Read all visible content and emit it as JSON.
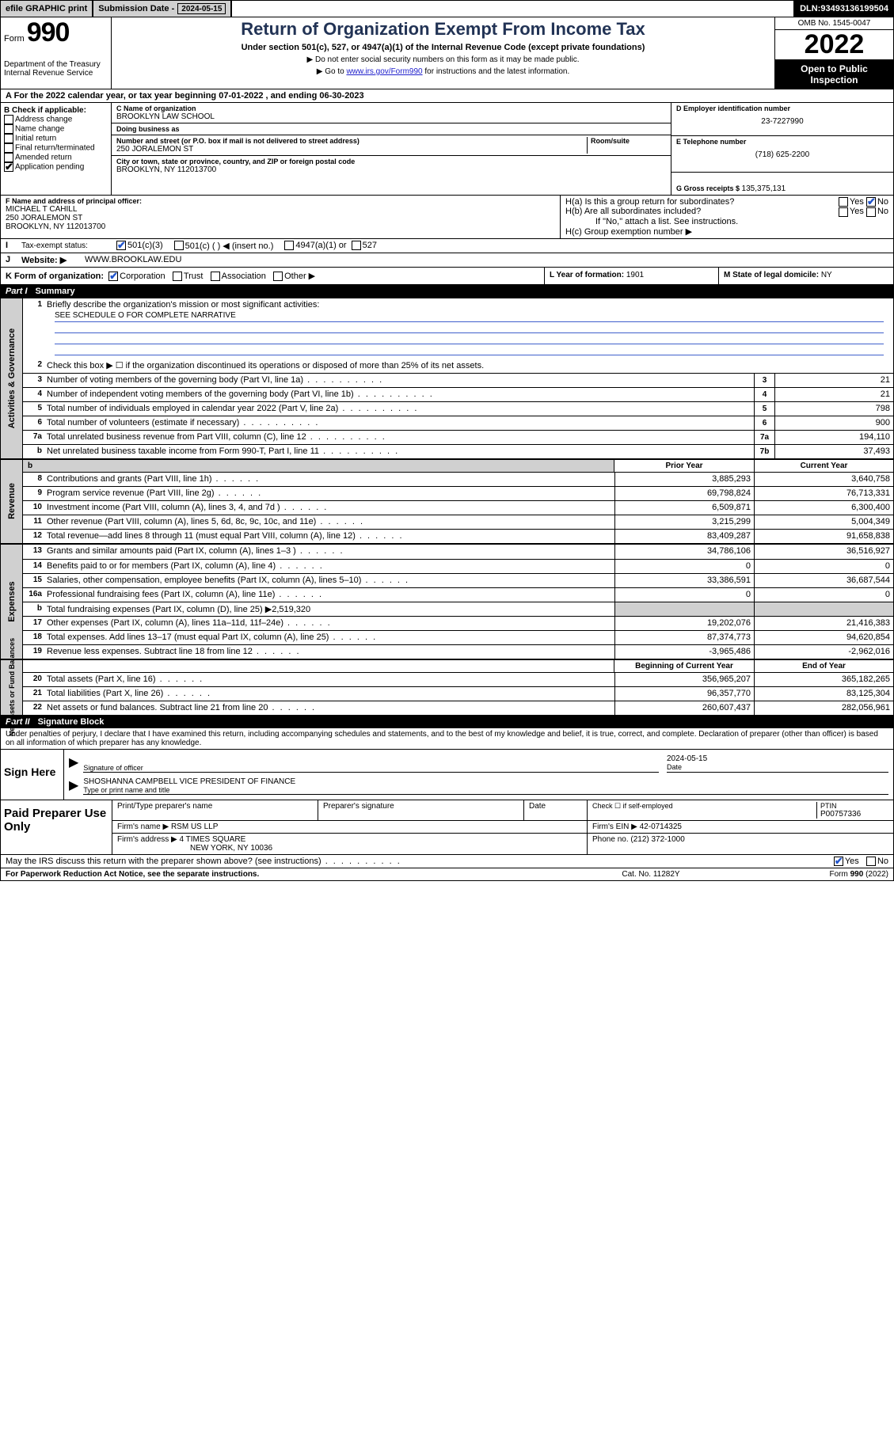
{
  "topbar": {
    "efile": "efile GRAPHIC print",
    "sub_label": "Submission Date - ",
    "sub_date": "2024-05-15",
    "dln_label": "DLN: ",
    "dln": "93493136199504"
  },
  "title_block": {
    "form_word": "Form",
    "form_num": "990",
    "dept": "Department of the Treasury",
    "irs": "Internal Revenue Service",
    "title": "Return of Organization Exempt From Income Tax",
    "sub1": "Under section 501(c), 527, or 4947(a)(1) of the Internal Revenue Code (except private foundations)",
    "sub2a": "▶ Do not enter social security numbers on this form as it may be made public.",
    "sub2b_pre": "▶ Go to ",
    "sub2b_link": "www.irs.gov/Form990",
    "sub2b_post": " for instructions and the latest information.",
    "omb": "OMB No. 1545-0047",
    "year": "2022",
    "open": "Open to Public Inspection"
  },
  "row_a": {
    "text_pre": "A For the 2022 calendar year, or tax year beginning ",
    "begin": "07-01-2022",
    "mid": " , and ending ",
    "end": "06-30-2023"
  },
  "section_b": {
    "heading": "B Check if applicable:",
    "opts": [
      "Address change",
      "Name change",
      "Initial return",
      "Final return/terminated",
      "Amended return",
      "Application pending"
    ]
  },
  "section_c": {
    "name_lbl": "C Name of organization",
    "name": "BROOKLYN LAW SCHOOL",
    "dba_lbl": "Doing business as",
    "dba": "",
    "addr_lbl": "Number and street (or P.O. box if mail is not delivered to street address)",
    "room_lbl": "Room/suite",
    "addr": "250 JORALEMON ST",
    "city_lbl": "City or town, state or province, country, and ZIP or foreign postal code",
    "city": "BROOKLYN, NY  112013700"
  },
  "section_d": {
    "ein_lbl": "D Employer identification number",
    "ein": "23-7227990",
    "tel_lbl": "E Telephone number",
    "tel": "(718) 625-2200",
    "gross_lbl": "G Gross receipts $ ",
    "gross": "135,375,131"
  },
  "section_f": {
    "lbl": "F Name and address of principal officer:",
    "name": "MICHAEL T CAHILL",
    "addr1": "250 JORALEMON ST",
    "addr2": "BROOKLYN, NY  112013700"
  },
  "section_h": {
    "ha": "H(a)  Is this a group return for subordinates?",
    "hb": "H(b)  Are all subordinates included?",
    "hb_note": "If \"No,\" attach a list. See instructions.",
    "hc": "H(c)  Group exemption number ▶",
    "yes": "Yes",
    "no": "No"
  },
  "row_i": {
    "lbl": "Tax-exempt status:",
    "opt1": "501(c)(3)",
    "opt2": "501(c) (   ) ◀ (insert no.)",
    "opt3": "4947(a)(1) or",
    "opt4": "527"
  },
  "row_j": {
    "lbl": "Website: ▶",
    "val": "WWW.BROOKLAW.EDU"
  },
  "row_k": {
    "lbl": "K Form of organization:",
    "o1": "Corporation",
    "o2": "Trust",
    "o3": "Association",
    "o4": "Other ▶",
    "l_lbl": "L Year of formation: ",
    "l_val": "1901",
    "m_lbl": "M State of legal domicile: ",
    "m_val": "NY"
  },
  "parts": {
    "p1": "Part I",
    "p1t": "Summary",
    "p2": "Part II",
    "p2t": "Signature Block"
  },
  "vtabs": {
    "ag": "Activities & Governance",
    "rev": "Revenue",
    "exp": "Expenses",
    "nafb": "Net Assets or\nFund Balances"
  },
  "summary": {
    "l1_lbl": "Briefly describe the organization's mission or most significant activities:",
    "l1_val": "SEE SCHEDULE O FOR COMPLETE NARRATIVE",
    "l2": "Check this box ▶ ☐  if the organization discontinued its operations or disposed of more than 25% of its net assets.",
    "lines_top": [
      {
        "n": "3",
        "d": "Number of voting members of the governing body (Part VI, line 1a)",
        "bn": "3",
        "v": "21"
      },
      {
        "n": "4",
        "d": "Number of independent voting members of the governing body (Part VI, line 1b)",
        "bn": "4",
        "v": "21"
      },
      {
        "n": "5",
        "d": "Total number of individuals employed in calendar year 2022 (Part V, line 2a)",
        "bn": "5",
        "v": "798"
      },
      {
        "n": "6",
        "d": "Total number of volunteers (estimate if necessary)",
        "bn": "6",
        "v": "900"
      },
      {
        "n": "7a",
        "d": "Total unrelated business revenue from Part VIII, column (C), line 12",
        "bn": "7a",
        "v": "194,110"
      },
      {
        "n": "b",
        "d": "Net unrelated business taxable income from Form 990-T, Part I, line 11",
        "bn": "7b",
        "v": "37,493"
      }
    ],
    "col_hdr_prior": "Prior Year",
    "col_hdr_curr": "Current Year",
    "revenue": [
      {
        "n": "8",
        "d": "Contributions and grants (Part VIII, line 1h)",
        "p": "3,885,293",
        "c": "3,640,758"
      },
      {
        "n": "9",
        "d": "Program service revenue (Part VIII, line 2g)",
        "p": "69,798,824",
        "c": "76,713,331"
      },
      {
        "n": "10",
        "d": "Investment income (Part VIII, column (A), lines 3, 4, and 7d )",
        "p": "6,509,871",
        "c": "6,300,400"
      },
      {
        "n": "11",
        "d": "Other revenue (Part VIII, column (A), lines 5, 6d, 8c, 9c, 10c, and 11e)",
        "p": "3,215,299",
        "c": "5,004,349"
      },
      {
        "n": "12",
        "d": "Total revenue—add lines 8 through 11 (must equal Part VIII, column (A), line 12)",
        "p": "83,409,287",
        "c": "91,658,838"
      }
    ],
    "expenses": [
      {
        "n": "13",
        "d": "Grants and similar amounts paid (Part IX, column (A), lines 1–3 )",
        "p": "34,786,106",
        "c": "36,516,927"
      },
      {
        "n": "14",
        "d": "Benefits paid to or for members (Part IX, column (A), line 4)",
        "p": "0",
        "c": "0"
      },
      {
        "n": "15",
        "d": "Salaries, other compensation, employee benefits (Part IX, column (A), lines 5–10)",
        "p": "33,386,591",
        "c": "36,687,544"
      },
      {
        "n": "16a",
        "d": "Professional fundraising fees (Part IX, column (A), line 11e)",
        "p": "0",
        "c": "0"
      }
    ],
    "l16b_pre": "Total fundraising expenses (Part IX, column (D), line 25) ▶",
    "l16b_val": "2,519,320",
    "expenses2": [
      {
        "n": "17",
        "d": "Other expenses (Part IX, column (A), lines 11a–11d, 11f–24e)",
        "p": "19,202,076",
        "c": "21,416,383"
      },
      {
        "n": "18",
        "d": "Total expenses. Add lines 13–17 (must equal Part IX, column (A), line 25)",
        "p": "87,374,773",
        "c": "94,620,854"
      },
      {
        "n": "19",
        "d": "Revenue less expenses. Subtract line 18 from line 12",
        "p": "-3,965,486",
        "c": "-2,962,016"
      }
    ],
    "col_hdr_begin": "Beginning of Current Year",
    "col_hdr_end": "End of Year",
    "netassets": [
      {
        "n": "20",
        "d": "Total assets (Part X, line 16)",
        "p": "356,965,207",
        "c": "365,182,265"
      },
      {
        "n": "21",
        "d": "Total liabilities (Part X, line 26)",
        "p": "96,357,770",
        "c": "83,125,304"
      },
      {
        "n": "22",
        "d": "Net assets or fund balances. Subtract line 21 from line 20",
        "p": "260,607,437",
        "c": "282,056,961"
      }
    ]
  },
  "sig": {
    "decl": "Under penalties of perjury, I declare that I have examined this return, including accompanying schedules and statements, and to the best of my knowledge and belief, it is true, correct, and complete. Declaration of preparer (other than officer) is based on all information of which preparer has any knowledge.",
    "sign_here": "Sign Here",
    "sig_of_officer": "Signature of officer",
    "date_lbl": "Date",
    "date": "2024-05-15",
    "name_title": "SHOSHANNA CAMPBELL  VICE PRESIDENT OF FINANCE",
    "name_title_lbl": "Type or print name and title"
  },
  "pp": {
    "title": "Paid Preparer Use Only",
    "h1": "Print/Type preparer's name",
    "h2": "Preparer's signature",
    "h3": "Date",
    "h4a": "Check ☐  if self-employed",
    "h4b_lbl": "PTIN",
    "h4b": "P00757336",
    "firm_name_lbl": "Firm's name   ▶ ",
    "firm_name": "RSM US LLP",
    "firm_ein_lbl": "Firm's EIN ▶ ",
    "firm_ein": "42-0714325",
    "firm_addr_lbl": "Firm's address ▶ ",
    "firm_addr1": "4 TIMES SQUARE",
    "firm_addr2": "NEW YORK, NY  10036",
    "phone_lbl": "Phone no. ",
    "phone": "(212) 372-1000"
  },
  "bottom": {
    "q": "May the IRS discuss this return with the preparer shown above? (see instructions)",
    "yes": "Yes",
    "no": "No"
  },
  "footer": {
    "f1": "For Paperwork Reduction Act Notice, see the separate instructions.",
    "f2": "Cat. No. 11282Y",
    "f3": "Form 990 (2022)"
  }
}
